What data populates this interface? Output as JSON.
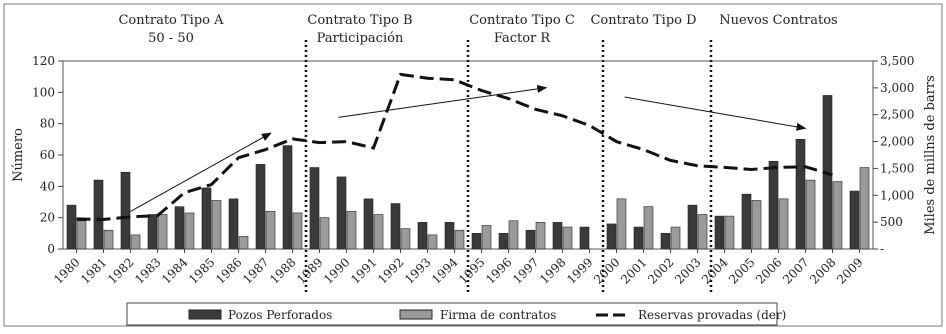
{
  "chart_data": {
    "type": "bar",
    "categories": [
      "1980",
      "1981",
      "1982",
      "1983",
      "1984",
      "1985",
      "1986",
      "1987",
      "1988",
      "1989",
      "1990",
      "1991",
      "1992",
      "1993",
      "1994",
      "1995",
      "1996",
      "1997",
      "1998",
      "1999",
      "2000",
      "2001",
      "2002",
      "2003",
      "2004",
      "2005",
      "2006",
      "2007",
      "2008",
      "2009"
    ],
    "series": [
      {
        "name": "Pozos Perforados",
        "color": "#3a3a3a",
        "axis": "left",
        "values": [
          28,
          44,
          49,
          22,
          27,
          39,
          32,
          54,
          66,
          52,
          46,
          32,
          29,
          17,
          17,
          10,
          10,
          12,
          17,
          14,
          16,
          14,
          10,
          28,
          21,
          35,
          56,
          70,
          98,
          37
        ]
      },
      {
        "name": "Firma de contratos",
        "color": "#9a9a9a",
        "axis": "left",
        "values": [
          18,
          12,
          9,
          22,
          23,
          31,
          8,
          24,
          23,
          20,
          24,
          22,
          13,
          9,
          12,
          15,
          18,
          17,
          14,
          0,
          32,
          27,
          14,
          22,
          21,
          31,
          32,
          44,
          43,
          52
        ]
      },
      {
        "name": "Reservas provadas (der)",
        "color": "#111111",
        "axis": "right",
        "style": "dashed",
        "values": [
          560,
          550,
          600,
          620,
          1050,
          1200,
          1700,
          1850,
          2050,
          1980,
          2000,
          1880,
          3250,
          3180,
          3150,
          2950,
          2800,
          2600,
          2480,
          2300,
          2000,
          1850,
          1650,
          1550,
          1520,
          1480,
          1520,
          1530,
          1380,
          null
        ]
      }
    ],
    "ylabel": "Número",
    "ylabel_right": "Miles de millns de barrs",
    "ylim": [
      0,
      120
    ],
    "yticks": [
      "0",
      "20",
      "40",
      "60",
      "80",
      "100",
      "120"
    ],
    "ylim_right": [
      0,
      3500
    ],
    "yticks_right": [
      "-",
      "500",
      "1,000",
      "1,500",
      "2,000",
      "2,500",
      "3,000",
      "3,500"
    ],
    "periods": [
      {
        "label": "Contrato Tipo A",
        "sub": "50 - 50",
        "center": "1983.5"
      },
      {
        "label": "Contrato Tipo B",
        "sub": "Participación",
        "center": "1990.5"
      },
      {
        "label": "Contrato Tipo C",
        "sub": "Factor R",
        "center": "1996.5"
      },
      {
        "label": "Contrato Tipo D",
        "sub": "",
        "center": "2001"
      },
      {
        "label": "Nuevos Contratos",
        "sub": "",
        "center": "2006"
      }
    ],
    "dividers": [
      1988.5,
      1994.5,
      1999.5,
      2003.5
    ],
    "arrows": [
      {
        "from": [
          1982,
          24
        ],
        "to": [
          1987.2,
          74
        ]
      },
      {
        "from": [
          1989.7,
          84
        ],
        "to": [
          1997.4,
          103
        ]
      },
      {
        "from": [
          2000.3,
          97
        ],
        "to": [
          2007,
          77
        ]
      }
    ],
    "grid": false,
    "legend_position": "bottom"
  }
}
